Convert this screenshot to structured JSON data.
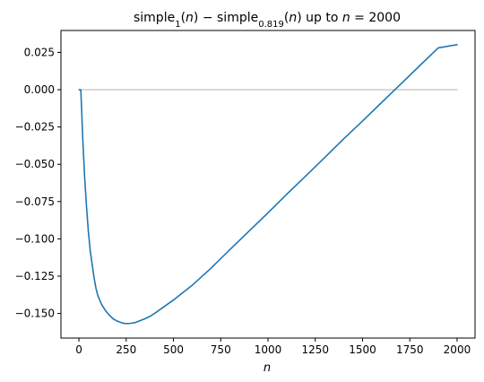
{
  "chart_data": {
    "type": "line",
    "title": {
      "prefix": "simple",
      "sub1": "1",
      "mid1": "(",
      "n1": "n",
      "mid2": ") − simple",
      "sub2": "0.819",
      "mid3": "(",
      "n2": "n",
      "mid4": ") up to ",
      "n3": "n",
      "suffix": " = 2000"
    },
    "xlabel": "n",
    "ylabel": "",
    "xlim": [
      -95,
      2095
    ],
    "ylim": [
      -0.1665,
      0.0397
    ],
    "grid": false,
    "xticks": [
      0,
      250,
      500,
      750,
      1000,
      1250,
      1500,
      1750,
      2000
    ],
    "xtick_labels": [
      "0",
      "250",
      "500",
      "750",
      "1000",
      "1250",
      "1500",
      "1750",
      "2000"
    ],
    "yticks": [
      0.025,
      0.0,
      -0.025,
      -0.05,
      -0.075,
      -0.1,
      -0.125,
      -0.15
    ],
    "ytick_labels": [
      "0.025",
      "0.000",
      "−0.025",
      "−0.050",
      "−0.075",
      "−0.100",
      "−0.125",
      "−0.150"
    ],
    "series": [
      {
        "color": "#1f77b4",
        "x": [
          1,
          10,
          15,
          20,
          25,
          30,
          40,
          50,
          60,
          70,
          80,
          90,
          100,
          120,
          140,
          160,
          180,
          200,
          220,
          240,
          260,
          280,
          300,
          325,
          350,
          375,
          400,
          450,
          500,
          550,
          600,
          700,
          800,
          900,
          1000,
          1100,
          1200,
          1300,
          1400,
          1500,
          1600,
          1700,
          1800,
          1900,
          2000
        ],
        "y": [
          0.0,
          0.0,
          -0.015,
          -0.032,
          -0.045,
          -0.058,
          -0.078,
          -0.095,
          -0.108,
          -0.117,
          -0.126,
          -0.133,
          -0.138,
          -0.144,
          -0.148,
          -0.151,
          -0.1535,
          -0.155,
          -0.156,
          -0.1567,
          -0.1568,
          -0.1565,
          -0.156,
          -0.1548,
          -0.1535,
          -0.152,
          -0.15,
          -0.1455,
          -0.141,
          -0.136,
          -0.131,
          -0.1195,
          -0.107,
          -0.0948,
          -0.0825,
          -0.07,
          -0.0578,
          -0.0455,
          -0.033,
          -0.021,
          -0.0087,
          0.0035,
          0.0158,
          0.028,
          0.0302
        ]
      },
      {
        "color": "#c8c8c8",
        "x": [
          1,
          2000
        ],
        "y": [
          0.0,
          0.0
        ]
      }
    ]
  }
}
